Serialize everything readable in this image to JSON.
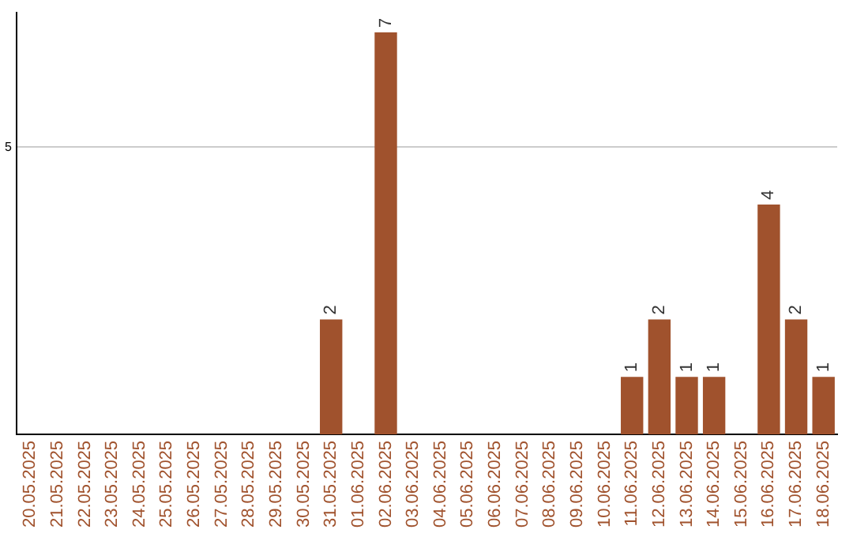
{
  "chart_data": {
    "type": "bar",
    "categories": [
      "20.05.2025",
      "21.05.2025",
      "22.05.2025",
      "23.05.2025",
      "24.05.2025",
      "25.05.2025",
      "26.05.2025",
      "27.05.2025",
      "28.05.2025",
      "29.05.2025",
      "30.05.2025",
      "31.05.2025",
      "01.06.2025",
      "02.06.2025",
      "03.06.2025",
      "04.06.2025",
      "05.06.2025",
      "06.06.2025",
      "07.06.2025",
      "08.06.2025",
      "09.06.2025",
      "10.06.2025",
      "11.06.2025",
      "12.06.2025",
      "13.06.2025",
      "14.06.2025",
      "15.06.2025",
      "16.06.2025",
      "17.06.2025",
      "18.06.2025"
    ],
    "series": [
      {
        "color": "#a0522d",
        "values": [
          0,
          0,
          0,
          0,
          0,
          0,
          0,
          0,
          0,
          0,
          0,
          2,
          0,
          7,
          0,
          0,
          0,
          0,
          0,
          0,
          0,
          0,
          1,
          2,
          1,
          1,
          0,
          4,
          2,
          1
        ],
        "value_labels": [
          null,
          null,
          null,
          null,
          null,
          null,
          null,
          null,
          null,
          null,
          null,
          "2",
          null,
          "7",
          null,
          null,
          null,
          null,
          null,
          null,
          null,
          null,
          "1",
          "2",
          "1",
          "1",
          null,
          "4",
          "2",
          "1"
        ]
      }
    ],
    "ylim": [
      0,
      7.35
    ],
    "yticks": [
      5
    ],
    "grid": "y",
    "legend": false
  }
}
